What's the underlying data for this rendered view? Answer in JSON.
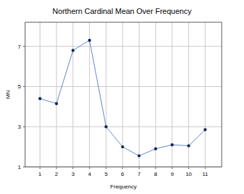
{
  "chart_data": {
    "type": "line",
    "title": "Northern Cardinal Mean Over Frequency",
    "x_label": "Frequency",
    "y_label": "MN",
    "x": [
      1,
      2,
      3,
      4,
      5,
      6,
      7,
      8,
      9,
      10,
      11
    ],
    "values": [
      4.4,
      4.15,
      6.8,
      7.3,
      3.0,
      2.0,
      1.55,
      1.9,
      2.1,
      2.05,
      2.85
    ],
    "color": "#5b86c9",
    "marker": "circle",
    "xlim": [
      0.1,
      12
    ],
    "xticks": [
      1,
      2,
      3,
      4,
      5,
      6,
      7,
      8,
      9,
      10,
      11
    ],
    "ylim": [
      1,
      8.2
    ],
    "yticks": [
      1,
      3,
      5,
      7
    ],
    "grid": true
  }
}
